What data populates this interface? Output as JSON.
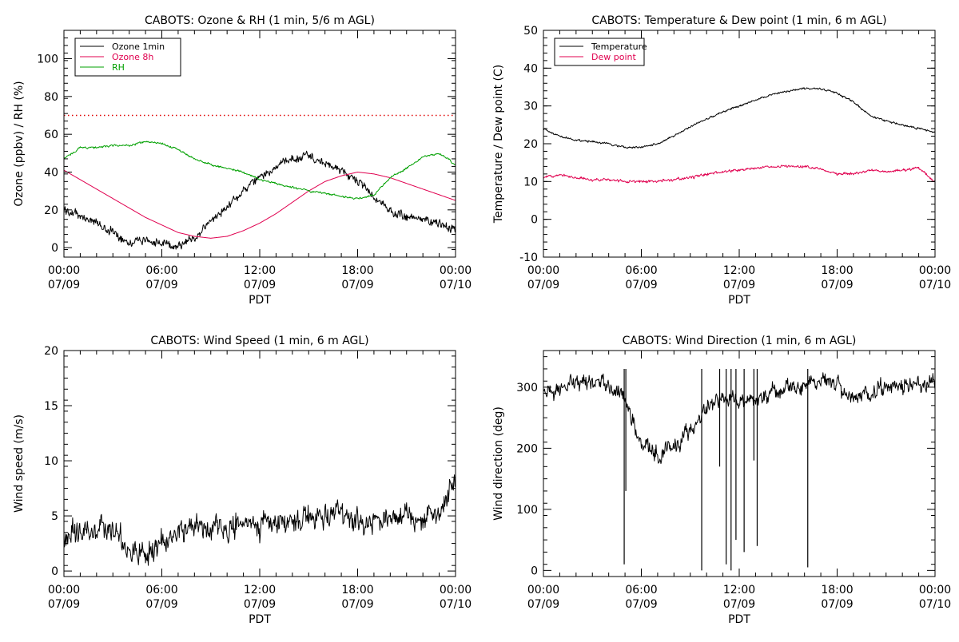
{
  "chart_data": [
    {
      "type": "line",
      "title": "CABOTS: Ozone & RH (1 min, 5/6 m AGL)",
      "xlabel": "PDT",
      "ylabel": "Ozone (ppbv) / RH (%)",
      "ylim": [
        -5,
        115
      ],
      "xlim": [
        0,
        24
      ],
      "xticks": [
        {
          "top": "00:00",
          "bottom": "07/09",
          "x": 0
        },
        {
          "top": "06:00",
          "bottom": "07/09",
          "x": 6
        },
        {
          "top": "12:00",
          "bottom": "07/09",
          "x": 12
        },
        {
          "top": "18:00",
          "bottom": "07/09",
          "x": 18
        },
        {
          "top": "00:00",
          "bottom": "07/10",
          "x": 24
        }
      ],
      "yticks": [
        0,
        20,
        40,
        60,
        80,
        100
      ],
      "legend": {
        "position": "top-left",
        "entries": [
          {
            "label": "Ozone 1min",
            "color": "#000000"
          },
          {
            "label": "Ozone 8h",
            "color": "#E0004F"
          },
          {
            "label": "RH",
            "color": "#00A000"
          }
        ]
      },
      "reference_line": {
        "y": 70,
        "color": "#E00000",
        "style": "dotted"
      },
      "series": [
        {
          "name": "Ozone 1min",
          "color": "#000000",
          "noise": 2.5,
          "x": [
            0,
            1,
            2,
            3,
            4,
            5,
            6,
            7,
            8,
            9,
            10,
            11,
            12,
            13,
            14,
            15,
            16,
            17,
            18,
            19,
            20,
            21,
            22,
            23,
            24
          ],
          "y": [
            20,
            17,
            13,
            8,
            3,
            4,
            2,
            1,
            5,
            14,
            22,
            30,
            37,
            43,
            47,
            49,
            44,
            41,
            35,
            27,
            19,
            16,
            15,
            13,
            10
          ]
        },
        {
          "name": "Ozone 8h",
          "color": "#E0004F",
          "noise": 0,
          "x": [
            0,
            1,
            2,
            3,
            4,
            5,
            6,
            7,
            8,
            9,
            10,
            11,
            12,
            13,
            14,
            15,
            16,
            17,
            18,
            19,
            20,
            21,
            22,
            23,
            24
          ],
          "y": [
            41,
            36,
            31,
            26,
            21,
            16,
            12,
            8,
            6,
            5,
            6,
            9,
            13,
            18,
            24,
            30,
            35,
            38,
            40,
            39,
            37,
            34,
            31,
            28,
            25
          ]
        },
        {
          "name": "RH",
          "color": "#00A000",
          "noise": 0.6,
          "x": [
            0,
            1,
            2,
            3,
            4,
            5,
            6,
            7,
            8,
            9,
            10,
            11,
            12,
            13,
            14,
            15,
            16,
            17,
            18,
            19,
            20,
            21,
            22,
            23,
            24
          ],
          "y": [
            47,
            53,
            53,
            54,
            54,
            56,
            55,
            52,
            47,
            44,
            42,
            40,
            36,
            34,
            32,
            30,
            29,
            27,
            26,
            28,
            37,
            42,
            48,
            50,
            44
          ]
        }
      ]
    },
    {
      "type": "line",
      "title": "CABOTS: Temperature & Dew point (1 min, 6 m AGL)",
      "xlabel": "PDT",
      "ylabel": "Temperature / Dew point (C)",
      "ylim": [
        -10,
        50
      ],
      "xlim": [
        0,
        24
      ],
      "xticks": [
        {
          "top": "00:00",
          "bottom": "07/09",
          "x": 0
        },
        {
          "top": "06:00",
          "bottom": "07/09",
          "x": 6
        },
        {
          "top": "12:00",
          "bottom": "07/09",
          "x": 12
        },
        {
          "top": "18:00",
          "bottom": "07/09",
          "x": 18
        },
        {
          "top": "00:00",
          "bottom": "07/10",
          "x": 24
        }
      ],
      "yticks": [
        -10,
        0,
        10,
        20,
        30,
        40,
        50
      ],
      "legend": {
        "position": "top-left",
        "entries": [
          {
            "label": "Temperature",
            "color": "#000000"
          },
          {
            "label": "Dew point",
            "color": "#E0004F"
          }
        ]
      },
      "series": [
        {
          "name": "Temperature",
          "color": "#000000",
          "noise": 0.3,
          "x": [
            0,
            1,
            2,
            3,
            4,
            5,
            6,
            7,
            8,
            9,
            10,
            11,
            12,
            13,
            14,
            15,
            16,
            17,
            18,
            19,
            20,
            21,
            22,
            23,
            24
          ],
          "y": [
            24,
            22,
            21,
            20.5,
            20,
            19,
            19,
            20,
            22,
            24.5,
            26.5,
            28.5,
            30,
            31.5,
            33,
            34,
            34.5,
            34.5,
            33.5,
            31,
            27.5,
            26,
            25,
            24,
            23
          ]
        },
        {
          "name": "Dew point",
          "color": "#E0004F",
          "noise": 0.4,
          "x": [
            0,
            1,
            2,
            3,
            4,
            5,
            6,
            7,
            8,
            9,
            10,
            11,
            12,
            13,
            14,
            15,
            16,
            17,
            18,
            19,
            20,
            21,
            22,
            23,
            24
          ],
          "y": [
            11,
            12,
            11,
            10.5,
            10.5,
            10,
            10,
            10,
            10.5,
            11,
            12,
            12.5,
            13,
            13.5,
            14,
            14,
            14,
            13.5,
            12,
            12,
            13,
            12.5,
            13,
            13.5,
            10
          ]
        }
      ]
    },
    {
      "type": "line",
      "title": "CABOTS: Wind Speed (1 min, 6 m AGL)",
      "xlabel": "PDT",
      "ylabel": "Wind speed (m/s)",
      "ylim": [
        -0.5,
        20
      ],
      "xlim": [
        0,
        24
      ],
      "xticks": [
        {
          "top": "00:00",
          "bottom": "07/09",
          "x": 0
        },
        {
          "top": "06:00",
          "bottom": "07/09",
          "x": 6
        },
        {
          "top": "12:00",
          "bottom": "07/09",
          "x": 12
        },
        {
          "top": "18:00",
          "bottom": "07/09",
          "x": 18
        },
        {
          "top": "00:00",
          "bottom": "07/10",
          "x": 24
        }
      ],
      "yticks": [
        0,
        5,
        10,
        15,
        20
      ],
      "series": [
        {
          "name": "Wind speed",
          "color": "#000000",
          "noise": 1.2,
          "x": [
            0,
            1,
            2,
            3,
            4,
            5,
            6,
            7,
            8,
            9,
            10,
            11,
            12,
            13,
            14,
            15,
            16,
            17,
            18,
            19,
            20,
            21,
            22,
            23,
            24
          ],
          "y": [
            3,
            3.5,
            3.5,
            4,
            2,
            1.5,
            2.5,
            3.5,
            4,
            4,
            4,
            4.5,
            4,
            4.5,
            4.5,
            5,
            5,
            5,
            4.5,
            4.5,
            5,
            5,
            5,
            5.5,
            8
          ]
        }
      ]
    },
    {
      "type": "line",
      "title": "CABOTS: Wind Direction (1 min, 6 m AGL)",
      "xlabel": "PDT",
      "ylabel": "Wind direction (deg)",
      "ylim": [
        -10,
        360
      ],
      "xlim": [
        0,
        24
      ],
      "xticks": [
        {
          "top": "00:00",
          "bottom": "07/09",
          "x": 0
        },
        {
          "top": "06:00",
          "bottom": "07/09",
          "x": 6
        },
        {
          "top": "12:00",
          "bottom": "07/09",
          "x": 12
        },
        {
          "top": "18:00",
          "bottom": "07/09",
          "x": 18
        },
        {
          "top": "00:00",
          "bottom": "07/10",
          "x": 24
        }
      ],
      "yticks": [
        0,
        100,
        200,
        300
      ],
      "series": [
        {
          "name": "Wind direction",
          "color": "#000000",
          "noise": 15,
          "x": [
            0,
            1,
            2,
            3,
            4,
            5,
            5.5,
            6,
            7,
            8,
            9,
            10,
            11,
            12,
            13,
            14,
            15,
            16,
            17,
            18,
            19,
            20,
            21,
            22,
            23,
            24
          ],
          "y": [
            290,
            295,
            305,
            310,
            300,
            290,
            240,
            210,
            190,
            200,
            230,
            270,
            280,
            280,
            280,
            290,
            300,
            305,
            310,
            305,
            280,
            290,
            300,
            305,
            305,
            310
          ]
        }
      ],
      "spikes": [
        {
          "x": 4.95,
          "y": 10
        },
        {
          "x": 5.05,
          "y": 130
        },
        {
          "x": 9.7,
          "y": 0
        },
        {
          "x": 11.2,
          "y": 10
        },
        {
          "x": 11.5,
          "y": 0
        },
        {
          "x": 11.8,
          "y": 50
        },
        {
          "x": 12.3,
          "y": 30
        },
        {
          "x": 13.1,
          "y": 40
        },
        {
          "x": 16.2,
          "y": 5
        },
        {
          "x": 10.8,
          "y": 170
        },
        {
          "x": 12.9,
          "y": 180
        }
      ]
    }
  ]
}
